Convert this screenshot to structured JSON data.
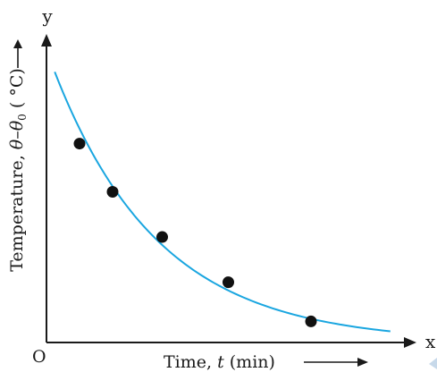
{
  "chart_data": {
    "type": "scatter",
    "x": [
      1,
      2,
      3.5,
      5.5,
      8
    ],
    "y": [
      6.6,
      5.0,
      3.5,
      2.0,
      0.7
    ],
    "trend_curve": "decaying exponential",
    "xlim": [
      0,
      11
    ],
    "ylim": [
      0,
      10
    ],
    "grid": false,
    "axis_letters": {
      "x": "x",
      "y": "y",
      "origin": "O"
    },
    "xlabel": {
      "prefix": "Time, ",
      "var": "t",
      "suffix": " (min)"
    },
    "ylabel": {
      "prefix": "Temperature, ",
      "var1": "θ",
      "minus": "–",
      "var2": "θ",
      "sub": "0",
      "unit": " ( °C)"
    },
    "colors": {
      "curve": "#1aa6e0",
      "points": "#111111",
      "axes": "#1a1a1a",
      "corner_mark": "#c7d9ea"
    }
  }
}
